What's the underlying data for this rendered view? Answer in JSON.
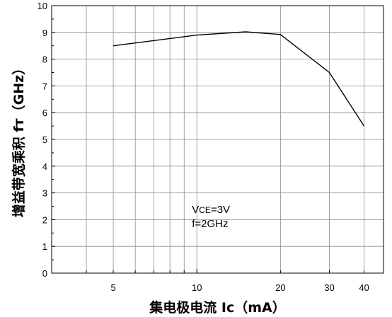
{
  "chart_data": {
    "type": "line",
    "title": "",
    "xlabel": "集电极电流 Ic（mA）",
    "ylabel": "增益带宽乘积 fт（GHz）",
    "x_scale": "log",
    "xlim": [
      3,
      47
    ],
    "ylim": [
      0,
      10
    ],
    "x_tick_labels": [
      {
        "value": 5,
        "label": "5"
      },
      {
        "value": 10,
        "label": "10"
      },
      {
        "value": 20,
        "label": "20"
      },
      {
        "value": 30,
        "label": "30"
      },
      {
        "value": 40,
        "label": "40"
      }
    ],
    "x_grid_values": [
      4,
      5,
      6,
      7,
      8,
      9,
      10,
      20,
      30,
      40
    ],
    "y_ticks": [
      0,
      1,
      2,
      3,
      4,
      5,
      6,
      7,
      8,
      9,
      10
    ],
    "y_tick_labels": [
      "0",
      "1",
      "2",
      "3",
      "4",
      "5",
      "6",
      "7",
      "8",
      "9",
      "10"
    ],
    "grid": true,
    "series": [
      {
        "x": [
          5,
          10,
          15,
          20,
          30,
          40
        ],
        "y": [
          8.5,
          8.9,
          9.02,
          8.92,
          7.5,
          5.5
        ],
        "color": "#000000"
      }
    ],
    "annotations": [
      {
        "prefix": "V",
        "subscript": "CE",
        "suffix": "=3V"
      },
      {
        "text": "f=2GHz"
      }
    ]
  }
}
